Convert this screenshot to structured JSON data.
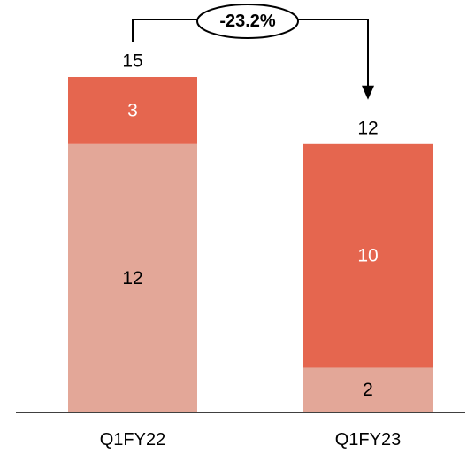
{
  "chart_data": {
    "type": "bar",
    "stacked": true,
    "categories": [
      "Q1FY22",
      "Q1FY23"
    ],
    "series": [
      {
        "values": [
          12,
          2
        ],
        "color": "#e3a798",
        "label_color": "#000000"
      },
      {
        "values": [
          3,
          10
        ],
        "color": "#e5664f",
        "label_color": "#ffffff"
      }
    ],
    "totals": [
      "15",
      "12"
    ],
    "ylim": [
      0,
      15
    ],
    "grid": false,
    "legend": "none",
    "annotation": {
      "text": "-23.2%",
      "from": "Q1FY22",
      "to": "Q1FY23"
    }
  }
}
